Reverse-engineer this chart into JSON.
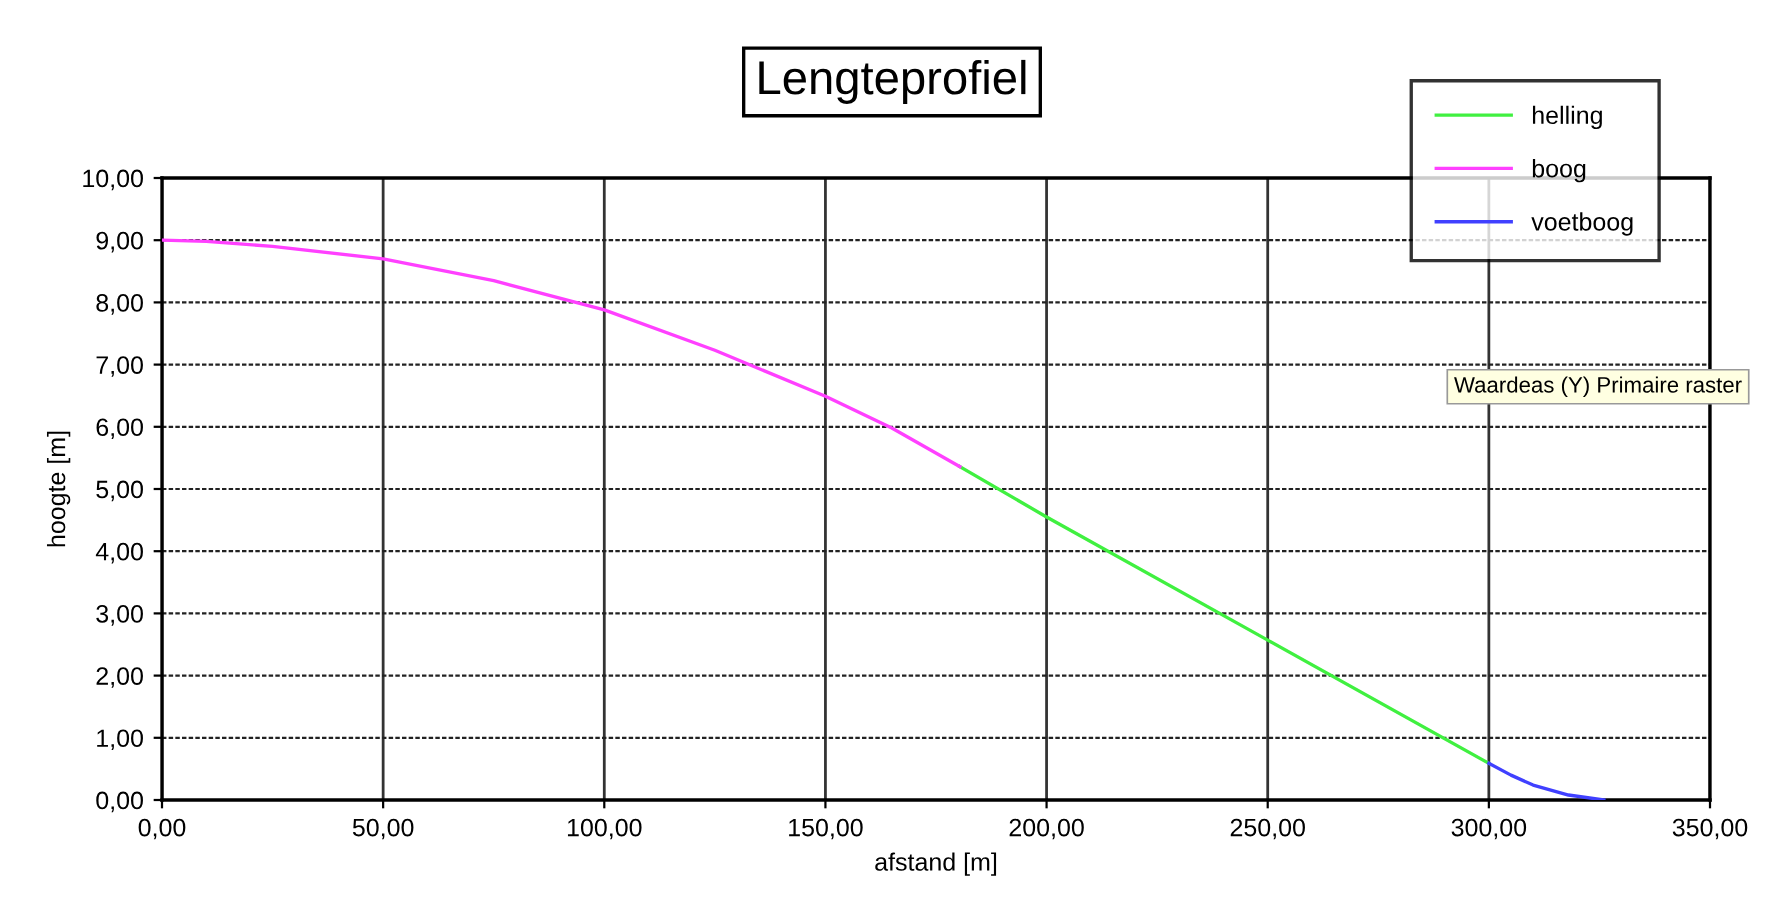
{
  "chart_data": {
    "type": "line",
    "title": "Lengteprofiel",
    "xlabel": "afstand [m]",
    "ylabel": "hoogte [m]",
    "series": [
      {
        "name": "helling",
        "color": "#40f040",
        "x": [
          180.4,
          200,
          250,
          300
        ],
        "values": [
          5.36,
          4.55,
          2.57,
          0.59
        ]
      },
      {
        "name": "boog",
        "color": "#ff40ff",
        "x": [
          0,
          10,
          25,
          50,
          75,
          100,
          125,
          150,
          165,
          180.4
        ],
        "values": [
          9.0,
          8.98,
          8.9,
          8.7,
          8.35,
          7.88,
          7.23,
          6.49,
          5.98,
          5.36
        ]
      },
      {
        "name": "voetboog",
        "color": "#4040ff",
        "x": [
          300,
          305,
          310,
          318,
          326
        ],
        "values": [
          0.59,
          0.4,
          0.24,
          0.08,
          0.0
        ]
      }
    ],
    "xlim": [
      0,
      350
    ],
    "ylim": [
      0,
      10
    ],
    "xticks": [
      {
        "value": 0,
        "label": "0,00"
      },
      {
        "value": 50,
        "label": "50,00"
      },
      {
        "value": 100,
        "label": "100,00"
      },
      {
        "value": 150,
        "label": "150,00"
      },
      {
        "value": 200,
        "label": "200,00"
      },
      {
        "value": 250,
        "label": "250,00"
      },
      {
        "value": 300,
        "label": "300,00"
      },
      {
        "value": 350,
        "label": "350,00"
      }
    ],
    "yticks": [
      {
        "value": 0,
        "label": "0,00"
      },
      {
        "value": 1,
        "label": "1,00"
      },
      {
        "value": 2,
        "label": "2,00"
      },
      {
        "value": 3,
        "label": "3,00"
      },
      {
        "value": 4,
        "label": "4,00"
      },
      {
        "value": 5,
        "label": "5,00"
      },
      {
        "value": 6,
        "label": "6,00"
      },
      {
        "value": 7,
        "label": "7,00"
      },
      {
        "value": 8,
        "label": "8,00"
      },
      {
        "value": 9,
        "label": "9,00"
      },
      {
        "value": 10,
        "label": "10,00"
      }
    ],
    "grid": true,
    "legend": "top right",
    "marker": "none",
    "line_style": "solid",
    "annotations": [
      "Waardeas (Y) Primaire raster"
    ]
  }
}
